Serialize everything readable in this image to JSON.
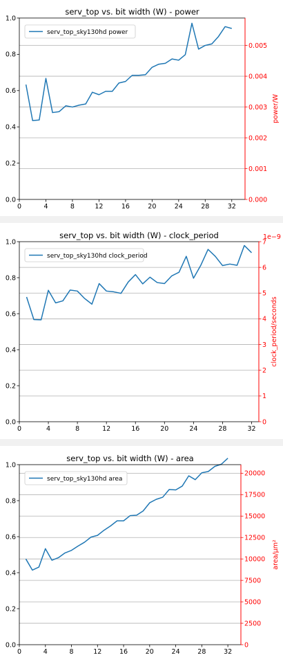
{
  "chart_data": [
    {
      "type": "line",
      "title": "serv_top vs. bit width (W) - power",
      "xlabel": "",
      "ylabel": "",
      "y2label": "power/W",
      "y2_offset_text": "",
      "x": [
        1,
        2,
        3,
        4,
        5,
        6,
        7,
        8,
        9,
        10,
        11,
        12,
        13,
        14,
        15,
        16,
        17,
        18,
        19,
        20,
        21,
        22,
        23,
        24,
        25,
        26,
        27,
        28,
        29,
        30,
        31,
        32
      ],
      "series": [
        {
          "name": "serv_top_sky130hd power",
          "values": [
            0.00373,
            0.00256,
            0.00258,
            0.00393,
            0.00282,
            0.00285,
            0.00304,
            0.003,
            0.00306,
            0.0031,
            0.00348,
            0.0034,
            0.00351,
            0.00351,
            0.00378,
            0.00383,
            0.00403,
            0.00403,
            0.00405,
            0.00429,
            0.00439,
            0.00442,
            0.00456,
            0.00452,
            0.0047,
            0.00572,
            0.00488,
            0.005,
            0.00505,
            0.00529,
            0.00561,
            0.00555
          ]
        }
      ],
      "xlim": [
        0,
        34
      ],
      "xticks": [
        0,
        4,
        8,
        12,
        16,
        20,
        24,
        28,
        32
      ],
      "ylim": [
        0,
        1
      ],
      "yticks": [
        0.0,
        0.2,
        0.4,
        0.6,
        0.8,
        1.0
      ],
      "ytick_labels": [
        "0.0",
        "0.2",
        "0.4",
        "0.6",
        "0.8",
        "1.0"
      ],
      "y2lim": [
        0,
        0.00589
      ],
      "y2ticks": [
        0,
        0.001,
        0.002,
        0.003,
        0.004,
        0.005
      ],
      "y2tick_labels": [
        "0.000",
        "0.001",
        "0.002",
        "0.003",
        "0.004",
        "0.005"
      ],
      "grid": "horizontal",
      "legend_position": "upper-left",
      "line_color": "#1f77b4",
      "secondary_axis_color": "#ff0000"
    },
    {
      "type": "line",
      "title": "serv_top vs. bit width (W) - clock_period",
      "xlabel": "",
      "ylabel": "",
      "y2label": "clock_period/seconds",
      "y2_offset_text": "1e−9",
      "x": [
        1,
        2,
        3,
        4,
        5,
        6,
        7,
        8,
        9,
        10,
        11,
        12,
        13,
        14,
        15,
        16,
        17,
        18,
        19,
        20,
        21,
        22,
        23,
        24,
        25,
        26,
        27,
        28,
        29,
        30,
        31,
        32
      ],
      "series": [
        {
          "name": "serv_top_sky130hd clock_period",
          "values": [
            4.85,
            3.97,
            3.96,
            5.11,
            4.62,
            4.7,
            5.12,
            5.08,
            4.79,
            4.57,
            5.37,
            5.08,
            5.05,
            4.99,
            5.43,
            5.72,
            5.36,
            5.62,
            5.41,
            5.37,
            5.67,
            5.81,
            6.43,
            5.58,
            6.08,
            6.7,
            6.43,
            6.07,
            6.13,
            6.08,
            6.85,
            6.57
          ]
        }
      ],
      "xlim": [
        0,
        33
      ],
      "xticks": [
        0,
        4,
        8,
        12,
        16,
        20,
        24,
        28,
        32
      ],
      "ylim": [
        0,
        1
      ],
      "yticks": [
        0.0,
        0.2,
        0.4,
        0.6,
        0.8,
        1.0
      ],
      "ytick_labels": [
        "0.0",
        "0.2",
        "0.4",
        "0.6",
        "0.8",
        "1.0"
      ],
      "y2lim": [
        0,
        7
      ],
      "y2ticks": [
        0,
        1,
        2,
        3,
        4,
        5,
        6,
        7
      ],
      "y2tick_labels": [
        "0",
        "1",
        "2",
        "3",
        "4",
        "5",
        "6",
        "7"
      ],
      "grid": "horizontal",
      "legend_position": "upper-left",
      "line_color": "#1f77b4",
      "secondary_axis_color": "#ff0000"
    },
    {
      "type": "line",
      "title": "serv_top vs. bit width (W) - area",
      "xlabel": "",
      "ylabel": "",
      "y2label": "area/μm²",
      "y2_offset_text": "",
      "x": [
        1,
        2,
        3,
        4,
        5,
        6,
        7,
        8,
        9,
        10,
        11,
        12,
        13,
        14,
        15,
        16,
        17,
        18,
        19,
        20,
        21,
        22,
        23,
        24,
        25,
        26,
        27,
        28,
        29,
        30,
        31,
        32
      ],
      "series": [
        {
          "name": "serv_top_sky130hd area",
          "values": [
            10000,
            8700,
            9050,
            11200,
            9850,
            10150,
            10700,
            11000,
            11500,
            11950,
            12550,
            12750,
            13350,
            13850,
            14450,
            14450,
            15050,
            15100,
            15600,
            16550,
            16950,
            17200,
            18100,
            18050,
            18500,
            19700,
            19250,
            20050,
            20200,
            20800,
            21050,
            21750
          ]
        }
      ],
      "xlim": [
        0,
        34
      ],
      "xticks": [
        0,
        4,
        8,
        12,
        16,
        20,
        24,
        28,
        32
      ],
      "ylim": [
        0,
        1
      ],
      "yticks": [
        0.0,
        0.2,
        0.4,
        0.6,
        0.8,
        1.0
      ],
      "ytick_labels": [
        "0.0",
        "0.2",
        "0.4",
        "0.6",
        "0.8",
        "1.0"
      ],
      "y2lim": [
        0,
        21000
      ],
      "y2ticks": [
        0,
        2500,
        5000,
        7500,
        10000,
        12500,
        15000,
        17500,
        20000
      ],
      "y2tick_labels": [
        "0",
        "2500",
        "5000",
        "7500",
        "10000",
        "12500",
        "15000",
        "17500",
        "20000"
      ],
      "grid": "horizontal",
      "legend_position": "upper-left",
      "line_color": "#1f77b4",
      "secondary_axis_color": "#ff0000"
    }
  ]
}
